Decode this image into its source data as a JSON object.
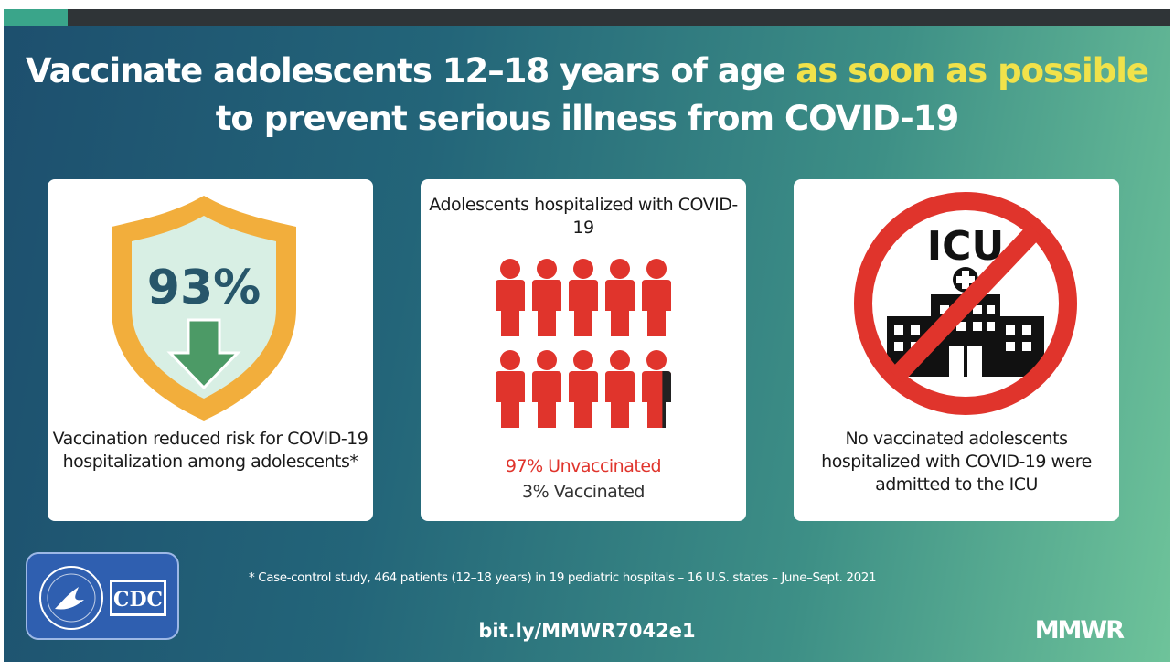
{
  "headline": {
    "part1": "Vaccinate adolescents 12–18 years of age ",
    "highlight": "as soon as possible",
    "line2": "to prevent serious illness from COVID-19"
  },
  "card1": {
    "percent": "93%",
    "description": "Vaccination reduced risk for COVID-19 hospitalization among adolescents*",
    "icons": [
      "shield-icon",
      "down-arrow-icon"
    ]
  },
  "card2": {
    "title": "Adolescents hospitalized with COVID-19",
    "unvaccinated_label": "97% Unvaccinated",
    "vaccinated_label": "3% Vaccinated",
    "unvaccinated_fraction": 0.97,
    "person_count": 10
  },
  "card3": {
    "sign_text": "ICU",
    "description": "No vaccinated adolescents hospitalized with COVID-19 were admitted to the ICU",
    "icons": [
      "hospital-icon",
      "no-sign-icon"
    ]
  },
  "footer": {
    "logo_text": "CDC",
    "footnote": "* Case-control study, 464 patients (12–18 years) in 19 pediatric hospitals – 16 U.S. states – June–Sept. 2021",
    "url": "bit.ly/MMWR7042e1",
    "brand": "MMWR"
  },
  "colors": {
    "highlight": "#f1e24a",
    "red": "#e0342c",
    "shield_orange": "#f2ae3c",
    "shield_inner": "#d8efe4",
    "arrow_green": "#4c9a66",
    "percent_teal": "#27566a"
  }
}
